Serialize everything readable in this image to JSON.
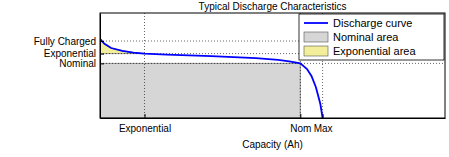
{
  "chart_data": {
    "type": "line",
    "title": "Typical Discharge Characteristics",
    "x_label": "Capacity (Ah)",
    "xlim": [
      0,
      1.55
    ],
    "ylim": [
      0,
      1.5
    ],
    "xticks": [
      {
        "value": 0.2,
        "label": "Exponential"
      },
      {
        "value": 0.9,
        "label": "Nom"
      },
      {
        "value": 1.0,
        "label": "Max"
      }
    ],
    "yticks": [
      {
        "value": 0.78,
        "label": "Nominal"
      },
      {
        "value": 0.92,
        "label": "Exponential"
      },
      {
        "value": 1.1,
        "label": "Fully Charged"
      }
    ],
    "grid": true,
    "legend": "northeast",
    "series": [
      {
        "name": "Discharge curve",
        "type": "line",
        "color": "#0000ff",
        "x": [
          0,
          0.02,
          0.05,
          0.1,
          0.15,
          0.2,
          0.3,
          0.4,
          0.5,
          0.6,
          0.7,
          0.8,
          0.85,
          0.9,
          0.93,
          0.95,
          0.97,
          0.99,
          1.0
        ],
        "values": [
          1.13,
          1.06,
          1.0,
          0.96,
          0.935,
          0.92,
          0.905,
          0.895,
          0.885,
          0.87,
          0.855,
          0.83,
          0.81,
          0.78,
          0.7,
          0.6,
          0.44,
          0.2,
          0.0
        ]
      },
      {
        "name": "Nominal area",
        "type": "area",
        "color": "#d6d6d6",
        "x": [
          0,
          0.9
        ],
        "values": [
          0.78,
          0.78
        ],
        "base": 0
      },
      {
        "name": "Exponential area",
        "type": "area",
        "color": "#f2ee9a",
        "x": [
          0,
          0.02,
          0.05,
          0.1,
          0.15,
          0.2
        ],
        "values": [
          1.13,
          1.06,
          1.0,
          0.96,
          0.935,
          0.92
        ],
        "base": 0.92
      }
    ]
  }
}
